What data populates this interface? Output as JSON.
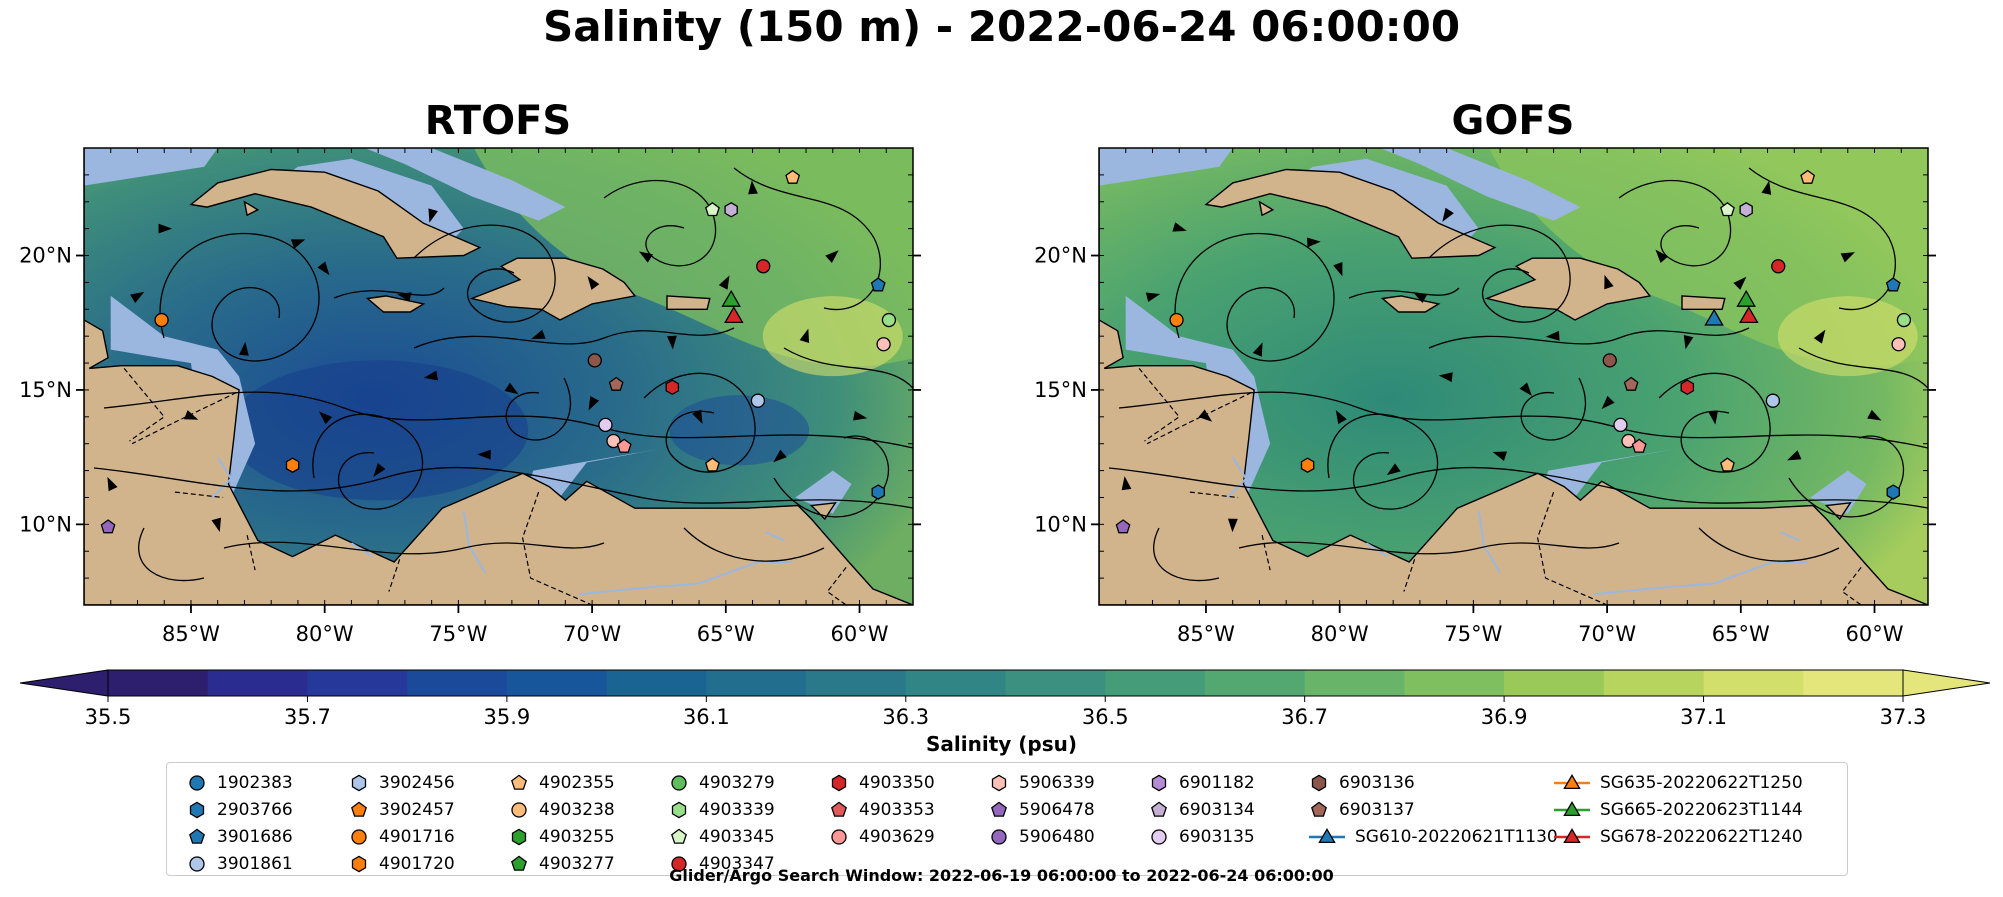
{
  "title": "Salinity (150 m) - 2022-06-24 06:00:00",
  "panels": [
    {
      "title": "RTOFS",
      "theme": "rtofs"
    },
    {
      "title": "GOFS",
      "theme": "gofs"
    }
  ],
  "map": {
    "lon_range": [
      -89,
      -58
    ],
    "lat_range": [
      7,
      24
    ],
    "lon_ticks": [
      {
        "value": -85,
        "label": "85°W"
      },
      {
        "value": -80,
        "label": "80°W"
      },
      {
        "value": -75,
        "label": "75°W"
      },
      {
        "value": -70,
        "label": "70°W"
      },
      {
        "value": -65,
        "label": "65°W"
      },
      {
        "value": -60,
        "label": "60°W"
      }
    ],
    "lat_ticks": [
      {
        "value": 20,
        "label": "20°N"
      },
      {
        "value": 15,
        "label": "15°N"
      },
      {
        "value": 10,
        "label": "10°N"
      }
    ],
    "land_color": "#d2b48c",
    "shallow_color": "#9bb7e0",
    "deep_color": "#2c1e6e"
  },
  "colorbar": {
    "label": "Salinity (psu)",
    "min": 35.5,
    "max": 37.3,
    "extend": "both",
    "ticks": [
      "35.5",
      "35.7",
      "35.9",
      "36.1",
      "36.3",
      "36.5",
      "36.7",
      "36.9",
      "37.1",
      "37.3"
    ],
    "colors": [
      "#2d1e6e",
      "#2b2c8f",
      "#26399a",
      "#1c4a9a",
      "#17569a",
      "#1a6494",
      "#216e8f",
      "#2a798b",
      "#328585",
      "#3b9080",
      "#459c78",
      "#53a872",
      "#68b469",
      "#80bf5f",
      "#9ac95a",
      "#b7d45f",
      "#d2df6b",
      "#e4e67c"
    ]
  },
  "legend": {
    "columns": [
      [
        {
          "label": "1902383",
          "marker": "circle",
          "color": "#1f77b4"
        },
        {
          "label": "2903766",
          "marker": "hexagon",
          "color": "#1f77b4"
        },
        {
          "label": "3901686",
          "marker": "pentagon",
          "color": "#1f77b4"
        },
        {
          "label": "3901861",
          "marker": "circle",
          "color": "#aec7e8"
        }
      ],
      [
        {
          "label": "3902456",
          "marker": "hexagon",
          "color": "#aec7e8"
        },
        {
          "label": "3902457",
          "marker": "pentagon",
          "color": "#ff7f0e"
        },
        {
          "label": "4901716",
          "marker": "circle",
          "color": "#ff7f0e"
        },
        {
          "label": "4901720",
          "marker": "hexagon",
          "color": "#ff7f0e"
        }
      ],
      [
        {
          "label": "4902355",
          "marker": "pentagon",
          "color": "#ffbb78"
        },
        {
          "label": "4903238",
          "marker": "circle",
          "color": "#ffbb78"
        },
        {
          "label": "4903255",
          "marker": "hexagon",
          "color": "#2ca02c"
        },
        {
          "label": "4903277",
          "marker": "pentagon",
          "color": "#2ca02c"
        }
      ],
      [
        {
          "label": "4903279",
          "marker": "circle",
          "color": "#5cbf5c"
        },
        {
          "label": "4903339",
          "marker": "hexagon",
          "color": "#98df8a"
        },
        {
          "label": "4903345",
          "marker": "pentagon",
          "color": "#d8f5c8"
        },
        {
          "label": "4903347",
          "marker": "circle",
          "color": "#d62728"
        }
      ],
      [
        {
          "label": "4903350",
          "marker": "hexagon",
          "color": "#d62728"
        },
        {
          "label": "4903353",
          "marker": "pentagon",
          "color": "#e05a5a"
        },
        {
          "label": "4903629",
          "marker": "circle",
          "color": "#ff9896"
        }
      ],
      [
        {
          "label": "5906339",
          "marker": "hexagon",
          "color": "#ffc0b8"
        },
        {
          "label": "5906478",
          "marker": "pentagon",
          "color": "#9467bd"
        },
        {
          "label": "5906480",
          "marker": "circle",
          "color": "#9467bd"
        }
      ],
      [
        {
          "label": "6901182",
          "marker": "hexagon",
          "color": "#b58bd8"
        },
        {
          "label": "6903134",
          "marker": "pentagon",
          "color": "#c5b0d5"
        },
        {
          "label": "6903135",
          "marker": "circle",
          "color": "#e2cdf0"
        }
      ],
      [
        {
          "label": "6903136",
          "marker": "hexagon",
          "color": "#8c564b"
        },
        {
          "label": "6903137",
          "marker": "pentagon",
          "color": "#a0675a"
        },
        {
          "label": "SG610-20220621T1130",
          "marker": "triangle-line",
          "color": "#1f77b4"
        }
      ],
      [
        {
          "label": "SG635-20220622T1250",
          "marker": "triangle-line",
          "color": "#ff7f0e"
        },
        {
          "label": "SG665-20220623T1144",
          "marker": "triangle-line",
          "color": "#2ca02c"
        },
        {
          "label": "SG678-20220622T1240",
          "marker": "triangle-line",
          "color": "#d62728"
        }
      ]
    ]
  },
  "footnote": "Glider/Argo Search Window: 2022-06-19 06:00:00 to 2022-06-24 06:00:00"
}
